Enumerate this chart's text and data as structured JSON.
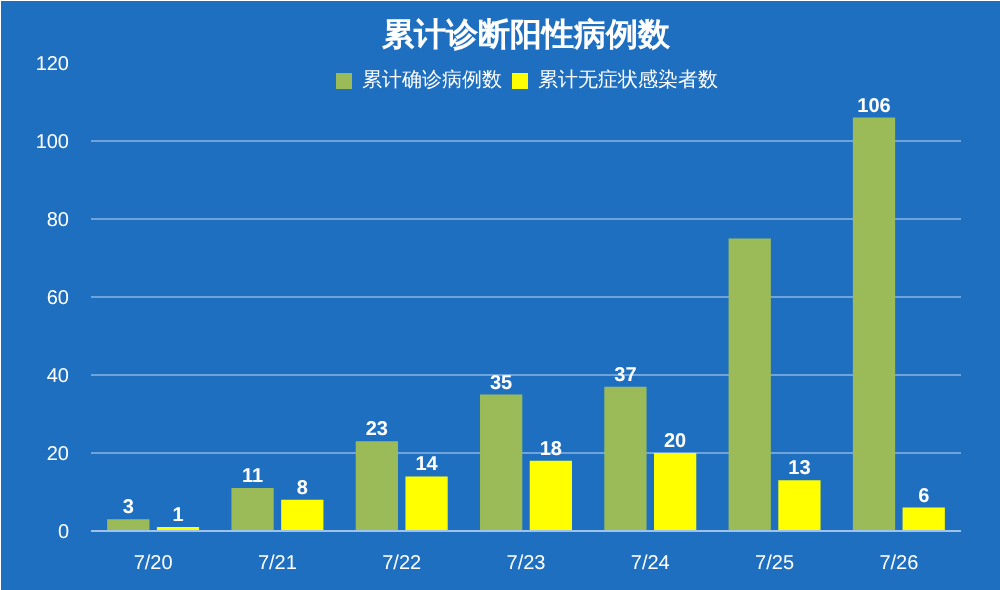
{
  "chart_data": {
    "type": "bar",
    "title": "累计诊断阳性病例数",
    "categories": [
      "7/20",
      "7/21",
      "7/22",
      "7/23",
      "7/24",
      "7/25",
      "7/26"
    ],
    "series": [
      {
        "name": "累计确诊病例数",
        "color": "#9bbb59",
        "values": [
          3,
          11,
          23,
          35,
          37,
          75,
          106
        ],
        "value_labels": [
          "3",
          "11",
          "23",
          "35",
          "37",
          null,
          "106"
        ]
      },
      {
        "name": "累计无症状感染者数",
        "color": "#ffff00",
        "values": [
          1,
          8,
          14,
          18,
          20,
          13,
          6
        ],
        "value_labels": [
          "1",
          "8",
          "14",
          "18",
          "20",
          "13",
          "6"
        ]
      }
    ],
    "ylim": [
      0,
      120
    ],
    "yticks": [
      0,
      20,
      40,
      60,
      80,
      100,
      120
    ],
    "grid": "y",
    "legend": "top"
  }
}
